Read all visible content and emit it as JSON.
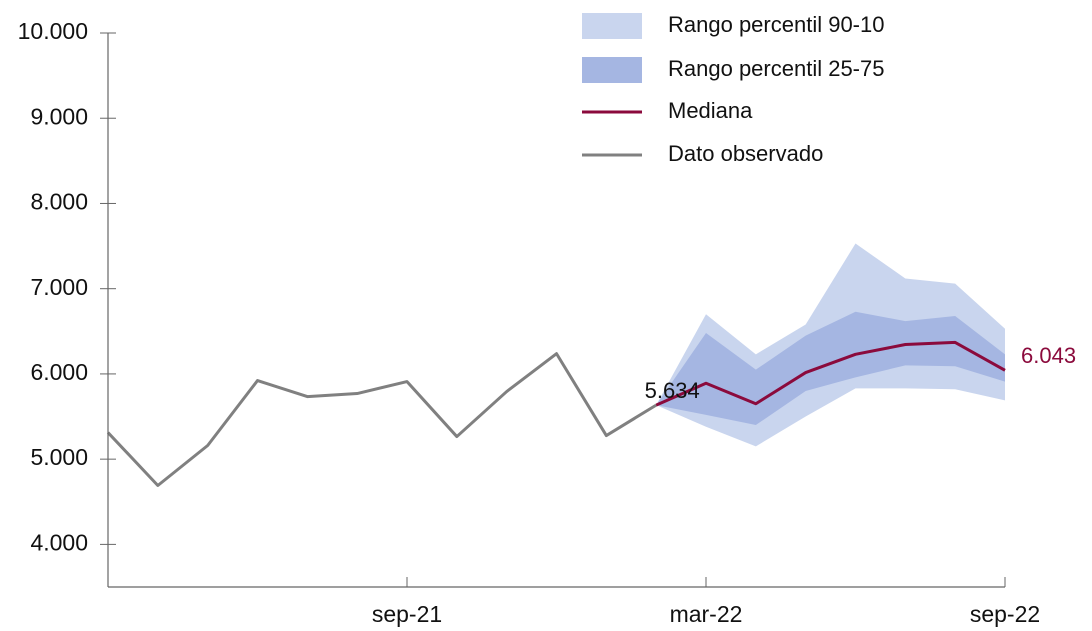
{
  "chart_data": {
    "type": "fan",
    "categories": [
      null,
      null,
      null,
      null,
      null,
      null,
      "sep-21",
      null,
      null,
      null,
      null,
      null,
      "mar-22",
      null,
      null,
      null,
      null,
      null,
      "sep-22"
    ],
    "ylim": [
      3500,
      10000
    ],
    "yticks": [
      {
        "value": 4000,
        "label": "4.000"
      },
      {
        "value": 5000,
        "label": "5.000"
      },
      {
        "value": 6000,
        "label": "6.000"
      },
      {
        "value": 7000,
        "label": "7.000"
      },
      {
        "value": 8000,
        "label": "8.000"
      },
      {
        "value": 9000,
        "label": "9.000"
      },
      {
        "value": 10000,
        "label": "10.000"
      }
    ],
    "bands": [
      {
        "name": "Rango percentil 90-10",
        "color": "#c9d5ee",
        "low": [
          null,
          null,
          null,
          null,
          null,
          null,
          null,
          null,
          null,
          null,
          null,
          5634,
          5380,
          5150,
          5500,
          5830,
          5830,
          5820,
          5690
        ],
        "high": [
          null,
          null,
          null,
          null,
          null,
          null,
          null,
          null,
          null,
          null,
          null,
          5634,
          6700,
          6230,
          6580,
          7530,
          7120,
          7060,
          6530
        ]
      },
      {
        "name": "Rango percentil 25-75",
        "color": "#a5b6e2",
        "low": [
          null,
          null,
          null,
          null,
          null,
          null,
          null,
          null,
          null,
          null,
          null,
          5634,
          5520,
          5400,
          5800,
          5960,
          6100,
          6090,
          5910
        ],
        "high": [
          null,
          null,
          null,
          null,
          null,
          null,
          null,
          null,
          null,
          null,
          null,
          5634,
          6480,
          6050,
          6450,
          6730,
          6620,
          6680,
          6230
        ]
      }
    ],
    "series": [
      {
        "name": "Mediana",
        "color": "#8b0a3c",
        "values": [
          null,
          null,
          null,
          null,
          null,
          null,
          null,
          null,
          null,
          null,
          null,
          5634,
          5890,
          5650,
          6016,
          6230,
          6345,
          6370,
          6043
        ],
        "value_labels": [
          null,
          null,
          null,
          null,
          null,
          null,
          null,
          null,
          null,
          null,
          null,
          "5.634",
          null,
          null,
          null,
          null,
          null,
          null,
          "6.043"
        ]
      },
      {
        "name": "Dato observado",
        "color": "#808080",
        "values": [
          5312,
          4691,
          5160,
          5922,
          5734,
          5770,
          5910,
          5265,
          5793,
          6238,
          5277,
          5634,
          null,
          null,
          null,
          null,
          null,
          null,
          null
        ]
      }
    ]
  }
}
